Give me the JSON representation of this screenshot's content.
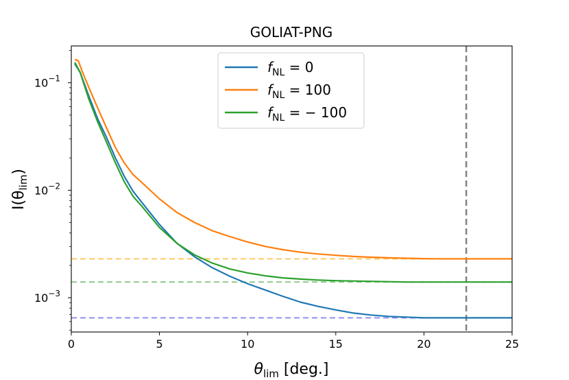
{
  "chart_data": {
    "type": "line",
    "title": "GOLIAT-PNG",
    "xlabel": {
      "main": "θ",
      "sub": "lim",
      "suffix": " [deg.]"
    },
    "ylabel": {
      "main": "I(θ",
      "sub": "lim",
      "suffix": ")"
    },
    "xlim": [
      0,
      25
    ],
    "ylim": [
      0.00048,
      0.22
    ],
    "yscale": "log",
    "xticks": [
      {
        "value": 0,
        "label": "0"
      },
      {
        "value": 5,
        "label": "5"
      },
      {
        "value": 10,
        "label": "10"
      },
      {
        "value": 15,
        "label": "15"
      },
      {
        "value": 20,
        "label": "20"
      },
      {
        "value": 25,
        "label": "25"
      }
    ],
    "yticks": [
      {
        "value": 0.1,
        "base": "10",
        "exp": "−1"
      },
      {
        "value": 0.01,
        "base": "10",
        "exp": "−2"
      },
      {
        "value": 0.001,
        "base": "10",
        "exp": "−3"
      }
    ],
    "legend_position": "top-center",
    "series": [
      {
        "name": "f_NL = 0",
        "legend": {
          "f": "f",
          "sub": "NL",
          "rest": " = 0"
        },
        "color": "#1f77b4",
        "x": [
          0.2,
          0.5,
          1,
          1.5,
          2,
          2.5,
          3,
          3.5,
          4,
          5,
          6,
          7,
          8,
          9,
          10,
          11,
          12,
          13,
          14,
          15,
          16,
          17,
          18,
          19,
          20,
          21,
          22,
          23,
          24,
          25
        ],
        "y": [
          0.15,
          0.125,
          0.075,
          0.046,
          0.031,
          0.02,
          0.0135,
          0.0098,
          0.0077,
          0.0048,
          0.0032,
          0.0024,
          0.0019,
          0.00158,
          0.00135,
          0.00118,
          0.00103,
          0.00091,
          0.00083,
          0.00077,
          0.00072,
          0.00069,
          0.00067,
          0.00066,
          0.00065,
          0.00065,
          0.00065,
          0.00065,
          0.00065,
          0.00065
        ]
      },
      {
        "name": "f_NL = 100",
        "legend": {
          "f": "f",
          "sub": "NL",
          "rest": " = 100"
        },
        "color": "#ff7f0e",
        "x": [
          0.2,
          0.4,
          0.6,
          1,
          1.5,
          2,
          2.5,
          3,
          3.5,
          4,
          5,
          6,
          7,
          8,
          9,
          10,
          11,
          12,
          13,
          14,
          15,
          16,
          17,
          18,
          19,
          20,
          21,
          22,
          23,
          24,
          25
        ],
        "y": [
          0.165,
          0.16,
          0.13,
          0.09,
          0.058,
          0.038,
          0.025,
          0.018,
          0.014,
          0.0118,
          0.0083,
          0.0062,
          0.005,
          0.0042,
          0.0037,
          0.0033,
          0.003,
          0.0028,
          0.00265,
          0.00255,
          0.00248,
          0.00242,
          0.00238,
          0.00235,
          0.00233,
          0.00231,
          0.0023,
          0.0023,
          0.0023,
          0.0023,
          0.0023
        ]
      },
      {
        "name": "f_NL = −100",
        "legend": {
          "f": "f",
          "sub": "NL",
          "rest": " = − 100"
        },
        "color": "#2ca02c",
        "x": [
          0.2,
          0.5,
          1,
          1.5,
          2,
          2.5,
          3,
          3.5,
          4,
          5,
          6,
          7,
          8,
          9,
          10,
          11,
          12,
          13,
          14,
          15,
          16,
          17,
          18,
          19,
          20,
          21,
          22,
          23,
          24,
          25
        ],
        "y": [
          0.155,
          0.125,
          0.07,
          0.043,
          0.028,
          0.018,
          0.012,
          0.0088,
          0.0071,
          0.0045,
          0.0032,
          0.0025,
          0.0021,
          0.00185,
          0.0017,
          0.0016,
          0.00153,
          0.00149,
          0.00146,
          0.00144,
          0.00143,
          0.00142,
          0.00141,
          0.0014,
          0.0014,
          0.0014,
          0.0014,
          0.0014,
          0.0014,
          0.0014
        ]
      }
    ],
    "reference_lines": [
      {
        "orientation": "horizontal",
        "value": 0.0023,
        "color": "#ffc966",
        "style": "dashed"
      },
      {
        "orientation": "horizontal",
        "value": 0.0014,
        "color": "#8fca8f",
        "style": "dashed"
      },
      {
        "orientation": "horizontal",
        "value": 0.00065,
        "color": "#8f8ff5",
        "style": "dashed"
      },
      {
        "orientation": "vertical",
        "value": 22.4,
        "color": "#808080",
        "style": "dashed"
      }
    ],
    "grid": false
  }
}
